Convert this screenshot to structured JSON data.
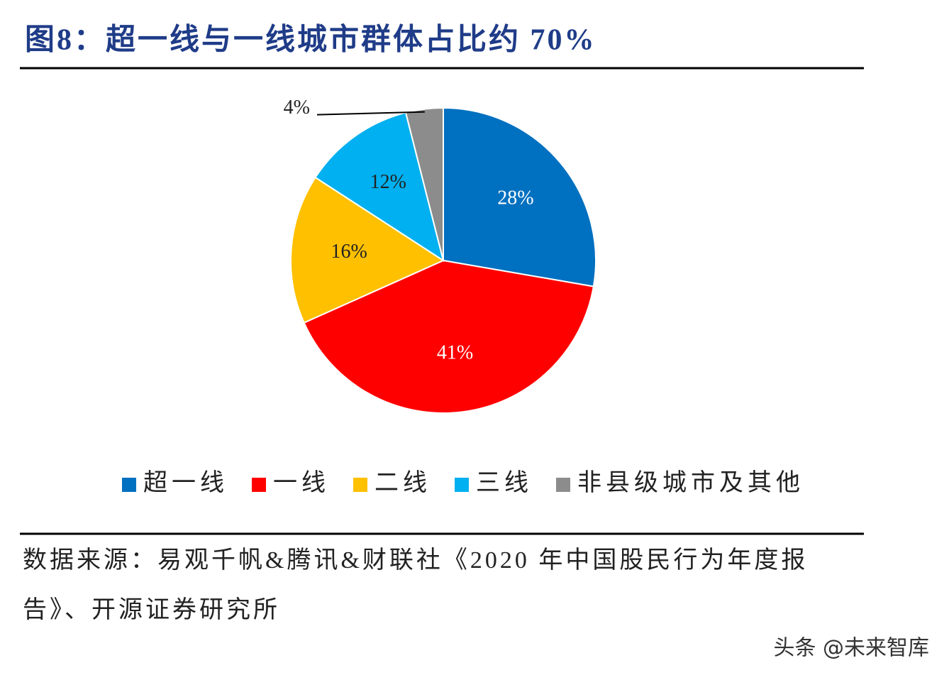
{
  "chart_data": {
    "type": "pie",
    "title": "图8：超一线与一线城市群体占比约 70%",
    "categories": [
      "超一线",
      "一线",
      "二线",
      "三线",
      "非县级城市及其他"
    ],
    "values": [
      28,
      41,
      16,
      12,
      4
    ],
    "value_labels": [
      "28%",
      "41%",
      "16%",
      "12%",
      "4%"
    ],
    "colors": [
      "#0070c0",
      "#ff0000",
      "#ffc000",
      "#00b0f0",
      "#8c8c8c"
    ],
    "legend": "bottom"
  },
  "source": {
    "lines": [
      "数据来源：易观千帆&腾讯&财联社《2020 年中国股民行为年度报",
      "告》、开源证券研究所"
    ]
  },
  "watermark": "头条 @未来智库"
}
